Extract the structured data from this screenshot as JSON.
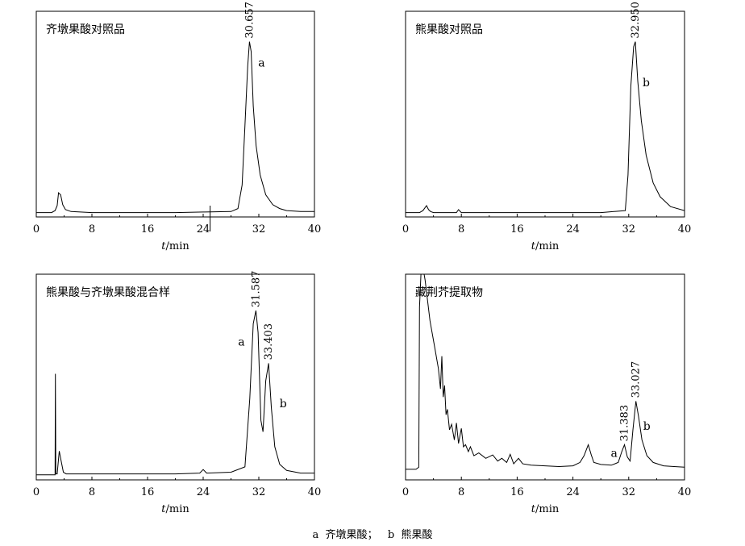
{
  "caption": {
    "a": "a",
    "a_name": "齐墩果酸；",
    "b": "b",
    "b_name": "熊果酸"
  },
  "chart_data": [
    {
      "type": "line",
      "title": "齐墩果酸对照品",
      "xlabel": "t/min",
      "xlim": [
        0,
        40
      ],
      "xticks": [
        0,
        8,
        16,
        24,
        32,
        40
      ],
      "series": [
        {
          "x": [
            0,
            2.2,
            2.7,
            3.0,
            3.2,
            3.5,
            3.8,
            4.2,
            5,
            8,
            12,
            16,
            20,
            24,
            28,
            29,
            29.6,
            30.0,
            30.4,
            30.657,
            30.9,
            31.2,
            31.6,
            32.2,
            33,
            34,
            35,
            36,
            38,
            40
          ],
          "y": [
            2,
            2,
            4,
            9,
            22,
            20,
            10,
            5,
            3,
            2,
            2,
            2,
            2,
            2.5,
            3,
            6,
            30,
            90,
            150,
            175,
            165,
            110,
            70,
            40,
            20,
            10,
            6,
            4,
            3,
            3
          ]
        }
      ],
      "annotations": [
        {
          "x": 30.657,
          "y": 175,
          "text": "30.657"
        },
        {
          "x": 32.4,
          "y": 150,
          "text": "a"
        }
      ],
      "marker_x": 25
    },
    {
      "type": "line",
      "title": "熊果酸对照品",
      "xlabel": "t/min",
      "xlim": [
        0,
        40
      ],
      "xticks": [
        0,
        8,
        16,
        24,
        32,
        40
      ],
      "series": [
        {
          "x": [
            0,
            2.0,
            2.5,
            3.0,
            3.3,
            3.6,
            4.0,
            5,
            7.3,
            7.6,
            8,
            12,
            16,
            20,
            24,
            28,
            31.5,
            31.9,
            32.3,
            32.7,
            32.95,
            33.3,
            33.8,
            34.5,
            35.5,
            36.5,
            38,
            40
          ],
          "y": [
            2,
            2,
            4,
            9,
            5,
            3,
            2,
            2,
            2,
            5,
            2,
            2,
            2,
            2,
            2,
            2,
            4,
            40,
            130,
            170,
            175,
            135,
            95,
            60,
            32,
            18,
            8,
            4
          ]
        }
      ],
      "annotations": [
        {
          "x": 32.95,
          "y": 175,
          "text": "32.950"
        },
        {
          "x": 34.5,
          "y": 130,
          "text": "b"
        }
      ]
    },
    {
      "type": "line",
      "title": "熊果酸与齐墩果酸混合样",
      "xlabel": "t/min",
      "xlim": [
        0,
        40
      ],
      "xticks": [
        0,
        8,
        16,
        24,
        32,
        40
      ],
      "series": [
        {
          "x": [
            0,
            2.5,
            2.7,
            2.75,
            2.8,
            3.0,
            3.3,
            3.6,
            3.9,
            4.3,
            5,
            8,
            12,
            16,
            20,
            23.5,
            24.0,
            24.5,
            28,
            30,
            30.7,
            31.2,
            31.587,
            31.9,
            32.3,
            32.6,
            33.0,
            33.403,
            33.8,
            34.3,
            35,
            36,
            38,
            40
          ],
          "y": [
            3,
            3,
            3,
            118,
            4,
            4,
            30,
            18,
            6,
            4,
            4,
            4,
            4,
            4,
            4,
            5,
            9,
            5,
            6,
            12,
            90,
            175,
            190,
            165,
            65,
            52,
            110,
            130,
            80,
            35,
            15,
            8,
            5,
            5
          ]
        }
      ],
      "annotations": [
        {
          "x": 31.587,
          "y": 190,
          "text": "31.587"
        },
        {
          "x": 33.403,
          "y": 130,
          "text": "33.403"
        },
        {
          "x": 29.5,
          "y": 150,
          "text": "a"
        },
        {
          "x": 35.5,
          "y": 80,
          "text": "b"
        }
      ]
    },
    {
      "type": "line",
      "title": "藏荆芥提取物",
      "xlabel": "t/min",
      "xlim": [
        0,
        40
      ],
      "xticks": [
        0,
        8,
        16,
        24,
        32,
        40
      ],
      "series": [
        {
          "x": [
            0,
            1.5,
            1.9,
            2.0,
            2.3,
            2.8,
            3.5,
            4.2,
            4.7,
            5.0,
            5.2,
            5.4,
            5.6,
            5.8,
            6.0,
            6.3,
            6.6,
            7.0,
            7.3,
            7.6,
            8.0,
            8.3,
            8.6,
            9.0,
            9.3,
            9.8,
            10.5,
            11.5,
            12.5,
            13.2,
            13.8,
            14.5,
            15.0,
            15.5,
            16.2,
            16.8,
            18,
            20,
            22,
            24,
            25.0,
            25.6,
            26.2,
            26.6,
            27.0,
            28,
            29.5,
            30.5,
            31.0,
            31.383,
            31.8,
            32.2,
            32.6,
            33.027,
            33.4,
            33.9,
            34.6,
            35.5,
            37,
            38.5,
            40
          ],
          "y": [
            12,
            12,
            15,
            250,
            320,
            290,
            230,
            190,
            160,
            130,
            178,
            118,
            135,
            92,
            100,
            70,
            78,
            55,
            80,
            50,
            72,
            45,
            48,
            38,
            45,
            32,
            36,
            28,
            33,
            24,
            28,
            22,
            34,
            20,
            28,
            20,
            18,
            17,
            16,
            17,
            22,
            32,
            48,
            34,
            22,
            19,
            18,
            22,
            38,
            48,
            30,
            24,
            70,
            112,
            90,
            55,
            32,
            22,
            17,
            16,
            15
          ]
        }
      ],
      "annotations": [
        {
          "x": 31.383,
          "y": 48,
          "text": "31.383"
        },
        {
          "x": 33.027,
          "y": 112,
          "text": "33.027"
        },
        {
          "x": 29.9,
          "y": 30,
          "text": "a"
        },
        {
          "x": 34.6,
          "y": 70,
          "text": "b"
        }
      ]
    }
  ]
}
